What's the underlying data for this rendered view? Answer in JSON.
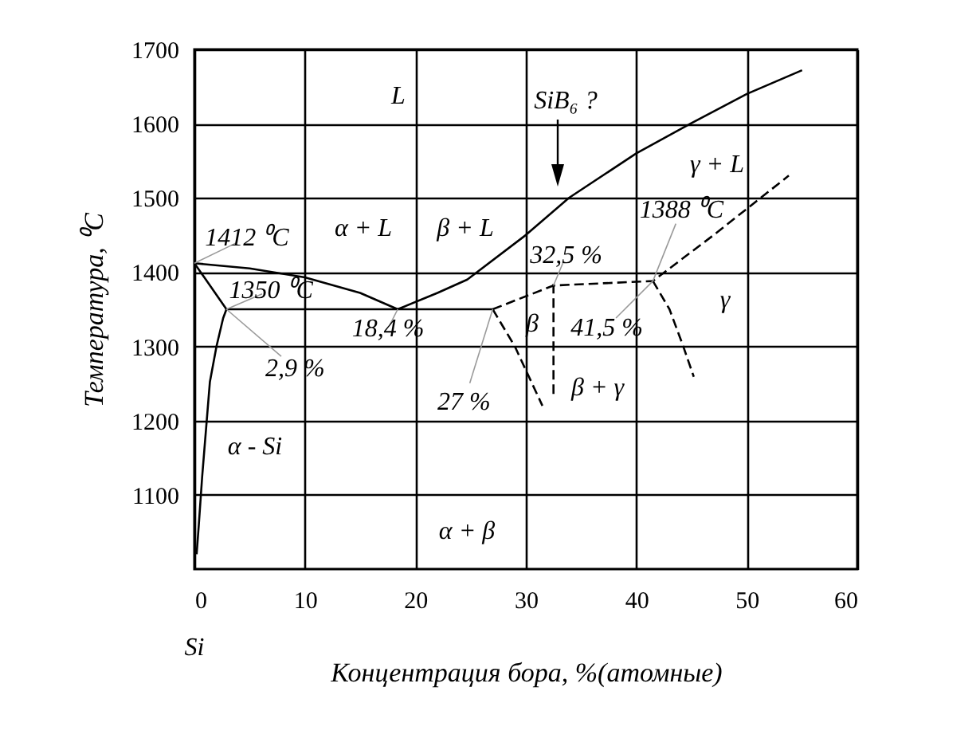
{
  "chart_data": {
    "type": "line",
    "xlabel": "Концентрация бора, %(атомные)",
    "ylabel": "Температура, ⁰C",
    "xlim": [
      0,
      60
    ],
    "xticks": [
      0,
      10,
      20,
      30,
      40,
      50,
      60
    ],
    "ylim": [
      1000,
      1700
    ],
    "yticks": [
      1100,
      1200,
      1300,
      1400,
      1500,
      1600,
      1700
    ],
    "grid": true,
    "marker": "none",
    "series": [
      {
        "color": "#000000",
        "line_style": "solid",
        "x": [
          0,
          5,
          10,
          15,
          18.4
        ],
        "values": [
          1412,
          1405,
          1393,
          1372,
          1350
        ]
      },
      {
        "color": "#000000",
        "line_style": "solid",
        "x": [
          18.4,
          22,
          24.7,
          30,
          33.9,
          40,
          44.9,
          50,
          55
        ],
        "values": [
          1350,
          1372,
          1390,
          1450,
          1500,
          1560,
          1600,
          1640,
          1672
        ]
      },
      {
        "color": "#000000",
        "line_style": "solid",
        "x": [
          2.9,
          27
        ],
        "values": [
          1350,
          1350
        ]
      },
      {
        "color": "#000000",
        "line_style": "solid",
        "x": [
          0,
          1.5,
          2.9
        ],
        "values": [
          1412,
          1380,
          1350
        ]
      },
      {
        "color": "#000000",
        "line_style": "solid",
        "x": [
          2.9,
          2.6,
          2,
          1.4,
          0.7,
          0.4,
          0.2
        ],
        "values": [
          1350,
          1338,
          1300,
          1252,
          1124,
          1060,
          1020
        ]
      },
      {
        "color": "#000000",
        "line_style": "dashed",
        "x": [
          27,
          29,
          31.5
        ],
        "values": [
          1350,
          1300,
          1220
        ]
      },
      {
        "color": "#000000",
        "line_style": "dashed",
        "x": [
          27,
          32.5,
          41.5,
          47,
          53.8
        ],
        "values": [
          1350,
          1382,
          1388,
          1450,
          1530
        ]
      },
      {
        "color": "#000000",
        "line_style": "dashed",
        "x": [
          32.5,
          32.5
        ],
        "values": [
          1384,
          1230
        ]
      },
      {
        "color": "#000000",
        "line_style": "dashed",
        "x": [
          41.5,
          43,
          44.2,
          45.2
        ],
        "values": [
          1388,
          1350,
          1302,
          1259
        ]
      }
    ],
    "annotations": [
      "L",
      "SiB₆ ?",
      "γ + L",
      {
        "text": "1388 ⁰C",
        "x": 41.5,
        "y": 1388
      },
      {
        "text": "1412 ⁰C",
        "x": 0,
        "y": 1412
      },
      "α + L",
      "β + L",
      {
        "text": "32,5 %",
        "x": 32.5,
        "y": 1382
      },
      {
        "text": "1350 ⁰C",
        "x": 2.9,
        "y": 1350
      },
      {
        "text": "18,4 %",
        "x": 18.4,
        "y": 1350
      },
      "β",
      {
        "text": "41,5 %",
        "x": 41.5,
        "y": 1388
      },
      "γ",
      {
        "text": "2,9 %",
        "x": 2.9,
        "y": 1350
      },
      "β + γ",
      {
        "text": "27 %",
        "x": 27,
        "y": 1350
      },
      "α - Si",
      "α + β",
      "Si"
    ]
  }
}
